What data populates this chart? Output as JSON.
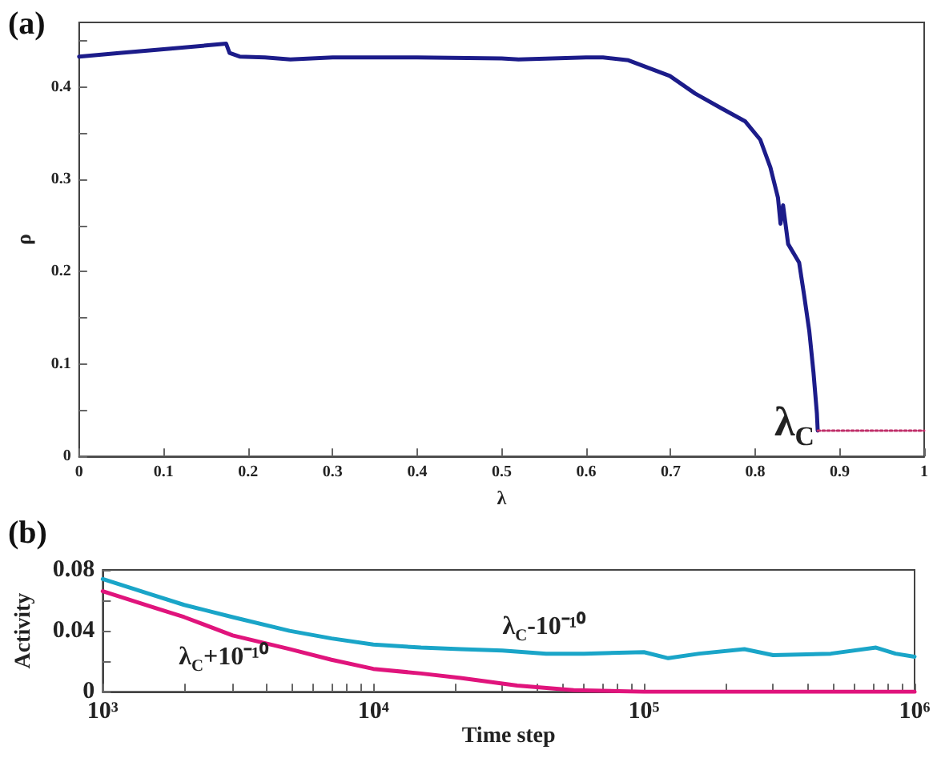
{
  "chart_data": [
    {
      "type": "line",
      "title": "(a)",
      "xlabel": "λ",
      "ylabel": "ρ",
      "xlim": [
        0,
        1
      ],
      "ylim": [
        0,
        0.47
      ],
      "xticks": [
        0,
        0.1,
        0.2,
        0.3,
        0.4,
        0.5,
        0.6,
        0.7,
        0.8,
        0.9,
        1
      ],
      "yticks": [
        0,
        {
          "value": 0.05,
          "label": null
        },
        0.1,
        {
          "value": 0.15,
          "label": null
        },
        0.2,
        {
          "value": 0.25,
          "label": null
        },
        0.3,
        {
          "value": 0.35,
          "label": null
        },
        0.4,
        {
          "value": 0.45,
          "label": null
        }
      ],
      "grid": false,
      "legend": false,
      "marker": "none",
      "annotations": [
        {
          "text": "λ$_{C}$",
          "x": 0.874,
          "y": 0.028
        }
      ],
      "series": [
        {
          "color": "#1c1c8a",
          "x": [
            0,
            0.05,
            0.1,
            0.15,
            0.174,
            0.178,
            0.19,
            0.22,
            0.25,
            0.3,
            0.4,
            0.5,
            0.52,
            0.6,
            0.62,
            0.65,
            0.699,
            0.729,
            0.76,
            0.788,
            0.806,
            0.818,
            0.827,
            0.83,
            0.833,
            0.839,
            0.852,
            0.858,
            0.864,
            0.869,
            0.873,
            0.874
          ],
          "values": [
            0.433,
            0.437,
            0.441,
            0.445,
            0.447,
            0.437,
            0.433,
            0.432,
            0.43,
            0.432,
            0.432,
            0.431,
            0.43,
            0.432,
            0.432,
            0.429,
            0.412,
            0.393,
            0.377,
            0.363,
            0.343,
            0.313,
            0.28,
            0.252,
            0.272,
            0.23,
            0.21,
            0.174,
            0.136,
            0.091,
            0.047,
            0.028
          ]
        },
        {
          "color": "#c0306a",
          "line_style": "dotted",
          "x": [
            0.874,
            1
          ],
          "values": [
            0.028,
            0.028
          ]
        }
      ]
    },
    {
      "type": "line",
      "title": "(b)",
      "xlabel": "Time step",
      "ylabel": "Activity",
      "log": "x",
      "xlim": [
        1000,
        1000000
      ],
      "ylim": [
        0,
        0.08
      ],
      "xticks": [
        {
          "value": 1000,
          "label": "10³"
        },
        {
          "value": 2000,
          "label": null
        },
        {
          "value": 3000,
          "label": null
        },
        {
          "value": 4000,
          "label": null
        },
        {
          "value": 5000,
          "label": null
        },
        {
          "value": 6000,
          "label": null
        },
        {
          "value": 7000,
          "label": null
        },
        {
          "value": 8000,
          "label": null
        },
        {
          "value": 9000,
          "label": null
        },
        {
          "value": 10000,
          "label": "10⁴"
        },
        {
          "value": 20000,
          "label": null
        },
        {
          "value": 30000,
          "label": null
        },
        {
          "value": 40000,
          "label": null
        },
        {
          "value": 50000,
          "label": null
        },
        {
          "value": 60000,
          "label": null
        },
        {
          "value": 70000,
          "label": null
        },
        {
          "value": 80000,
          "label": null
        },
        {
          "value": 90000,
          "label": null
        },
        {
          "value": 100000,
          "label": "10⁵"
        },
        {
          "value": 200000,
          "label": null
        },
        {
          "value": 300000,
          "label": null
        },
        {
          "value": 400000,
          "label": null
        },
        {
          "value": 500000,
          "label": null
        },
        {
          "value": 600000,
          "label": null
        },
        {
          "value": 700000,
          "label": null
        },
        {
          "value": 800000,
          "label": null
        },
        {
          "value": 900000,
          "label": null
        },
        {
          "value": 1000000,
          "label": "10⁶"
        }
      ],
      "yticks": [
        0,
        {
          "value": 0.02,
          "label": null
        },
        0.04,
        {
          "value": 0.06,
          "label": null
        },
        0.08
      ],
      "grid": false,
      "legend": false,
      "marker": "none",
      "series": [
        {
          "name": "λ$_{C}$-10⁻¹⁰",
          "color": "#1aa5c8",
          "x": [
            1000,
            1500,
            2000,
            3020,
            4900,
            7000,
            10000,
            15000,
            21000,
            30000,
            43500,
            60000,
            100000,
            123000,
            160000,
            235000,
            300000,
            490000,
            720000,
            850000,
            1000000
          ],
          "values": [
            0.074,
            0.064,
            0.057,
            0.049,
            0.04,
            0.035,
            0.031,
            0.029,
            0.028,
            0.027,
            0.025,
            0.025,
            0.026,
            0.022,
            0.025,
            0.028,
            0.024,
            0.025,
            0.029,
            0.025,
            0.023
          ]
        },
        {
          "name": "λ$_{C}$+10⁻¹⁰",
          "color": "#e0147c",
          "x": [
            1000,
            1500,
            2000,
            3020,
            4900,
            7000,
            10000,
            15000,
            21000,
            34000,
            55000,
            100000,
            1000000
          ],
          "values": [
            0.066,
            0.056,
            0.049,
            0.037,
            0.028,
            0.021,
            0.015,
            0.012,
            0.009,
            0.004,
            0.001,
            0,
            0
          ]
        }
      ]
    }
  ]
}
